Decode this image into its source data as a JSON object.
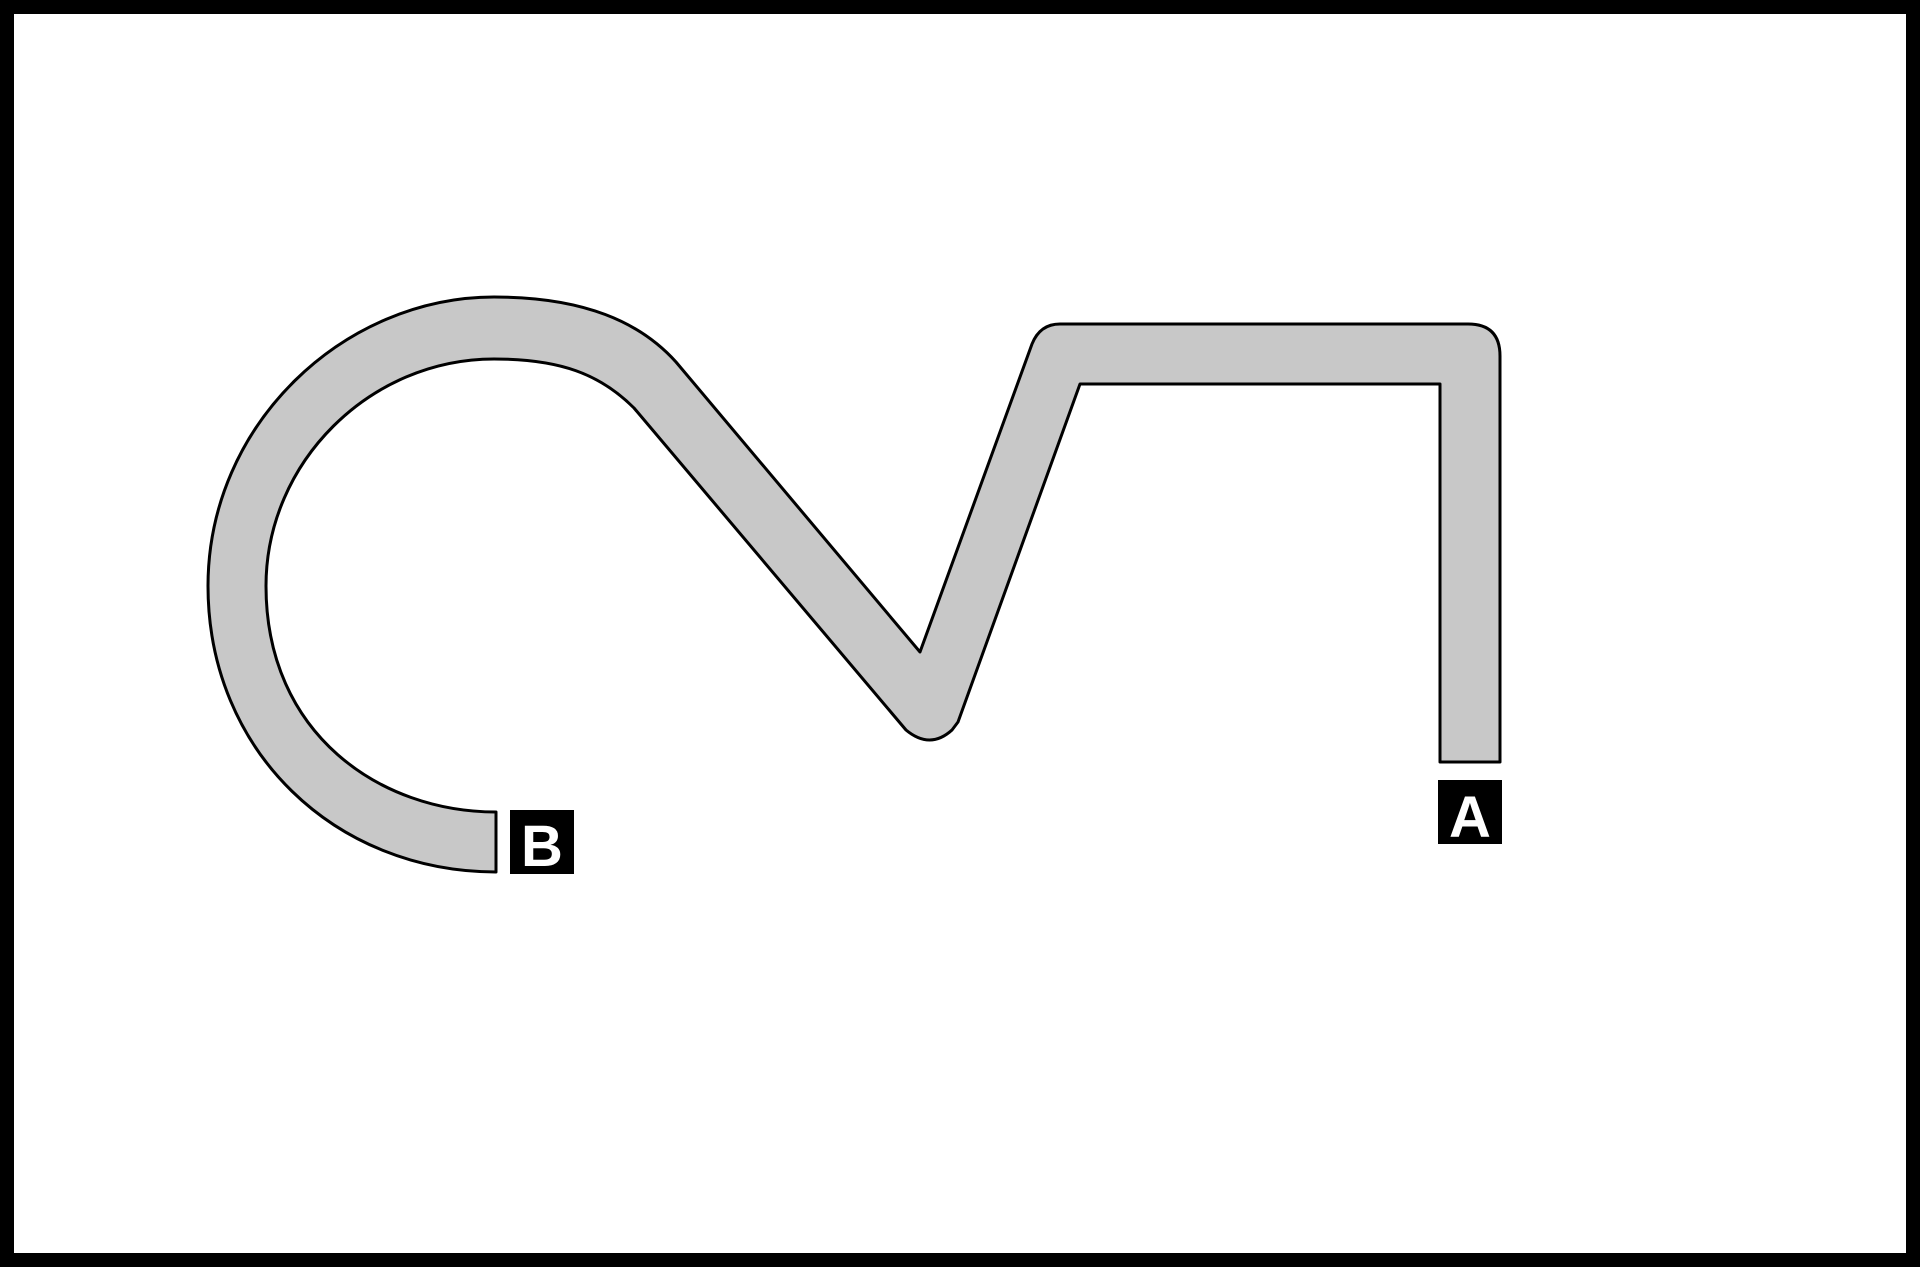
{
  "diagram": {
    "labels": {
      "a": "A",
      "b": "B"
    },
    "colors": {
      "frame": "#000000",
      "background": "#ffffff",
      "path_fill": "#c8c8c8",
      "path_outline": "#000000",
      "label_box": "#000000",
      "label_text": "#ffffff"
    }
  }
}
